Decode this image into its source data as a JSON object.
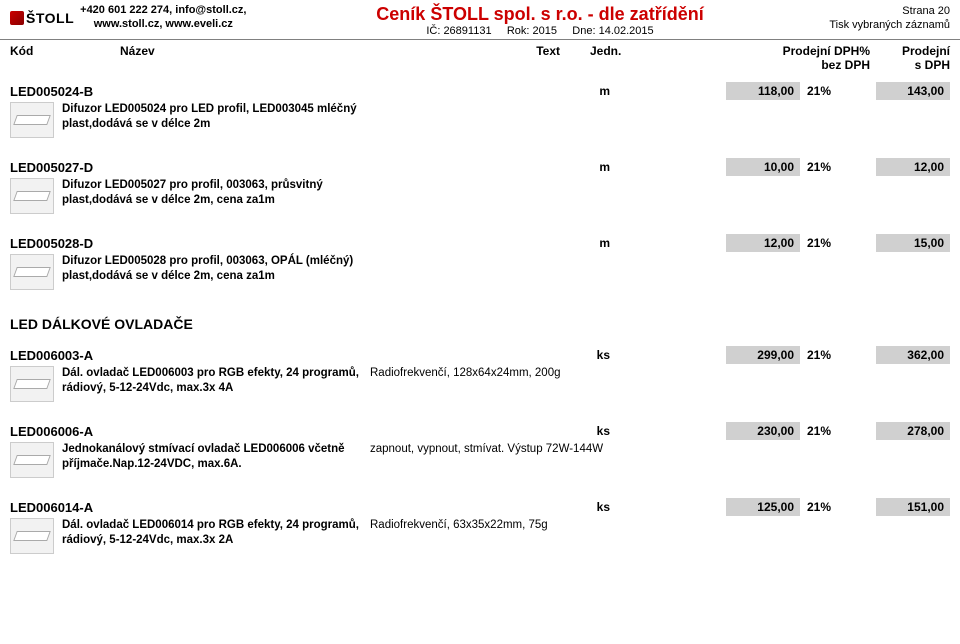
{
  "header": {
    "logo_text": "ŠTOLL",
    "phone": "+420 601 222 274, info@stoll.cz,",
    "web": "www.stoll.cz, www.eveli.cz",
    "title": "Ceník ŠTOLL spol. s r.o. - dle zatřídění",
    "subtitle_ic": "IČ: 26891131",
    "subtitle_rok": "Rok: 2015",
    "subtitle_dne": "Dne: 14.02.2015",
    "page": "Strana 20",
    "print_note": "Tisk vybraných záznamů"
  },
  "columns": {
    "kod": "Kód",
    "nazev": "Název",
    "text": "Text",
    "jedn": "Jedn.",
    "prodejni": "Prodejní",
    "dph": "DPH%",
    "prodejni2": "Prodejní",
    "bezdph": "bez DPH",
    "sdph": "s DPH"
  },
  "section_remote": "LED DÁLKOVÉ OVLADAČE",
  "items": [
    {
      "kod": "LED005024-B",
      "jedn": "m",
      "desc": "Difuzor LED005024 pro LED profil, LED003045 mléčný plast,dodává se v délce 2m",
      "extra": "",
      "price_no_vat": "118,00",
      "dph": "21%",
      "price_vat": "143,00"
    },
    {
      "kod": "LED005027-D",
      "jedn": "m",
      "desc": "Difuzor LED005027 pro profil, 003063, průsvitný plast,dodává se v délce 2m, cena za1m",
      "extra": "",
      "price_no_vat": "10,00",
      "dph": "21%",
      "price_vat": "12,00"
    },
    {
      "kod": "LED005028-D",
      "jedn": "m",
      "desc": "Difuzor LED005028 pro profil, 003063, OPÁL (mléčný) plast,dodává se v délce 2m, cena za1m",
      "extra": "",
      "price_no_vat": "12,00",
      "dph": "21%",
      "price_vat": "15,00"
    },
    {
      "kod": "LED006003-A",
      "jedn": "ks",
      "desc": "Dál. ovladač LED006003 pro RGB efekty, 24 programů, rádiový, 5-12-24Vdc, max.3x 4A",
      "extra": "Radiofrekvenčí, 128x64x24mm, 200g",
      "price_no_vat": "299,00",
      "dph": "21%",
      "price_vat": "362,00"
    },
    {
      "kod": "LED006006-A",
      "jedn": "ks",
      "desc": "Jednokanálový stmívací ovladač LED006006 včetně příjmače.Nap.12-24VDC, max.6A.",
      "extra": "zapnout, vypnout, stmívat. Výstup 72W-144W",
      "price_no_vat": "230,00",
      "dph": "21%",
      "price_vat": "278,00"
    },
    {
      "kod": "LED006014-A",
      "jedn": "ks",
      "desc": "Dál. ovladač LED006014 pro RGB efekty, 24 programů, rádiový, 5-12-24Vdc, max.3x 2A",
      "extra": "Radiofrekvenčí, 63x35x22mm, 75g",
      "price_no_vat": "125,00",
      "dph": "21%",
      "price_vat": "151,00"
    }
  ]
}
